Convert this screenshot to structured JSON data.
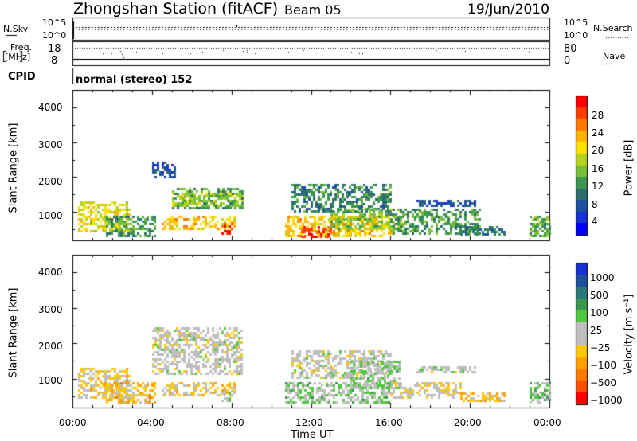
{
  "header": {
    "station": "Zhongshan Station (fitACF)",
    "beam": "Beam 05",
    "date": "19/Jun/2010"
  },
  "strip": {
    "nsky_label": "N.Sky",
    "nsky_ticks": [
      "10^5",
      "10^0"
    ],
    "nsearch_label": "N.Search",
    "nsearch_ticks": [
      "10^5",
      "10^0"
    ],
    "freq_label": "Freq.",
    "freq_unit": "[MHz]",
    "freq_ticks": [
      "18",
      "8"
    ],
    "nave_label": "Nave",
    "nave_ticks": [
      "80",
      "0"
    ],
    "cpid_label": "CPID",
    "cpid_value": "normal (stereo) 152"
  },
  "axes": {
    "ylabel": "Slant Range [km]",
    "yticks": [
      "4000",
      "3000",
      "2000",
      "1000"
    ],
    "xlabel": "Time UT",
    "xticks": [
      "00:00",
      "04:00",
      "08:00",
      "12:00",
      "16:00",
      "20:00",
      "00:00"
    ]
  },
  "colorbars": {
    "power": {
      "label": "Power [dB]",
      "ticks": [
        "28",
        "24",
        "20",
        "16",
        "12",
        "8",
        "4"
      ],
      "colors": [
        "#ff0000",
        "#ff3c00",
        "#ff7800",
        "#ffb400",
        "#ffe000",
        "#b4d21e",
        "#78be3c",
        "#3c9650",
        "#2d6e6e",
        "#1e50a0",
        "#1432d2",
        "#0000ff"
      ]
    },
    "velocity": {
      "label": "Velocity [m s⁻¹]",
      "ticks": [
        "1000",
        "500",
        "100",
        "25",
        "−25",
        "−100",
        "−500",
        "−1000"
      ],
      "colors": [
        "#1432d2",
        "#1e50a0",
        "#2d7878",
        "#3c9650",
        "#4ec83c",
        "#bebebe",
        "#bebebe",
        "#ffc800",
        "#ffa000",
        "#ff7800",
        "#ff5000",
        "#ff0000"
      ]
    }
  },
  "chart_data": {
    "type": "heatmap",
    "panels": [
      {
        "name": "power",
        "title": "Power [dB]",
        "x_range_hours": [
          0,
          24
        ],
        "y_range_km": [
          180,
          4500
        ],
        "value_range": [
          0,
          30
        ],
        "regions": [
          {
            "t0": 0.3,
            "t1": 2.9,
            "r0": 450,
            "r1": 1300,
            "v": 18
          },
          {
            "t0": 1.7,
            "t1": 4.2,
            "r0": 350,
            "r1": 900,
            "v": 11
          },
          {
            "t0": 4.5,
            "t1": 8.2,
            "r0": 500,
            "r1": 900,
            "v": 20
          },
          {
            "t0": 7.5,
            "t1": 8.0,
            "r0": 380,
            "r1": 750,
            "v": 28
          },
          {
            "t0": 5.0,
            "t1": 8.5,
            "r0": 1150,
            "r1": 1700,
            "v": 12
          },
          {
            "t0": 4.0,
            "t1": 5.2,
            "r0": 2000,
            "r1": 2450,
            "v": 6
          },
          {
            "t0": 5.0,
            "t1": 8.6,
            "r0": 1200,
            "r1": 1550,
            "v": 16
          },
          {
            "t0": 10.7,
            "t1": 16.0,
            "r0": 300,
            "r1": 900,
            "v": 20
          },
          {
            "t0": 11.5,
            "t1": 13.0,
            "r0": 300,
            "r1": 600,
            "v": 27
          },
          {
            "t0": 11.0,
            "t1": 16.0,
            "r0": 1000,
            "r1": 1800,
            "v": 10
          },
          {
            "t0": 13.0,
            "t1": 16.5,
            "r0": 500,
            "r1": 1100,
            "v": 14
          },
          {
            "t0": 16.0,
            "t1": 20.5,
            "r0": 350,
            "r1": 1100,
            "v": 11
          },
          {
            "t0": 17.3,
            "t1": 20.2,
            "r0": 1150,
            "r1": 1350,
            "v": 6
          },
          {
            "t0": 19.5,
            "t1": 21.7,
            "r0": 350,
            "r1": 600,
            "v": 9
          },
          {
            "t0": 23.0,
            "t1": 24.0,
            "r0": 350,
            "r1": 900,
            "v": 13
          }
        ]
      },
      {
        "name": "velocity",
        "title": "Velocity [m s⁻¹]",
        "x_range_hours": [
          0,
          24
        ],
        "y_range_km": [
          180,
          4500
        ],
        "value_range": [
          -1000,
          1000
        ],
        "regions": [
          {
            "t0": 0.3,
            "t1": 2.9,
            "r0": 450,
            "r1": 1300,
            "v": -150
          },
          {
            "t0": 1.7,
            "t1": 4.2,
            "r0": 350,
            "r1": 900,
            "v": -300
          },
          {
            "t0": 4.5,
            "t1": 8.2,
            "r0": 500,
            "r1": 900,
            "v": -200
          },
          {
            "t0": 7.5,
            "t1": 8.0,
            "r0": 380,
            "r1": 750,
            "v": 60
          },
          {
            "t0": 4.0,
            "t1": 8.5,
            "r0": 1150,
            "r1": 2450,
            "v": 0
          },
          {
            "t0": 10.7,
            "t1": 16.0,
            "r0": 300,
            "r1": 900,
            "v": 150
          },
          {
            "t0": 11.0,
            "t1": 16.0,
            "r0": 1000,
            "r1": 1800,
            "v": 0
          },
          {
            "t0": 14.0,
            "t1": 16.5,
            "r0": 700,
            "r1": 1500,
            "v": 120
          },
          {
            "t0": 16.0,
            "t1": 19.5,
            "r0": 450,
            "r1": 900,
            "v": -120
          },
          {
            "t0": 17.3,
            "t1": 20.2,
            "r0": 1150,
            "r1": 1350,
            "v": 0
          },
          {
            "t0": 19.5,
            "t1": 21.7,
            "r0": 350,
            "r1": 600,
            "v": -250
          },
          {
            "t0": 23.0,
            "t1": 24.0,
            "r0": 350,
            "r1": 900,
            "v": 200
          }
        ]
      }
    ]
  }
}
